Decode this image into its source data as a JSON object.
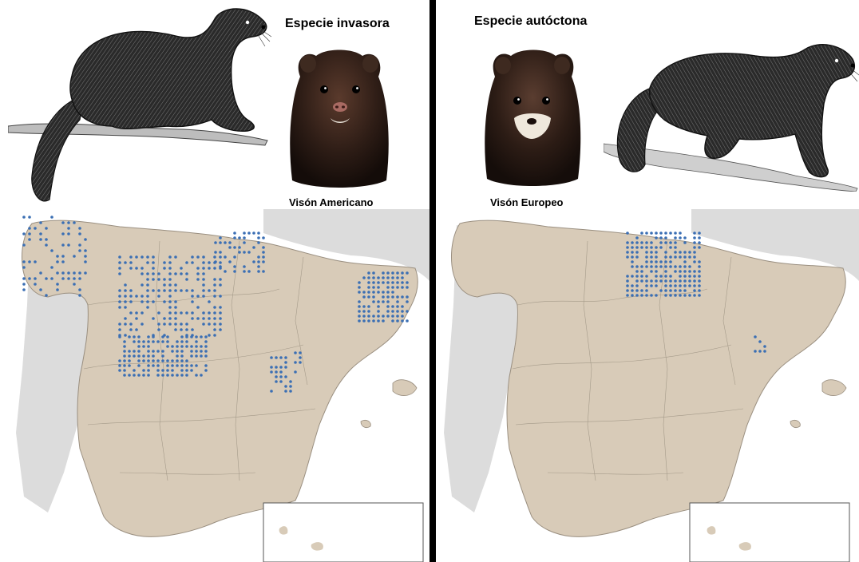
{
  "invasive": {
    "heading": "Especie invasora",
    "species_label": "Visón Americano",
    "illustration": "american-mink-engraving",
    "photo": "american-mink-head-photo",
    "map": "spain-distribution-map-american-mink"
  },
  "native": {
    "heading": "Especie autóctona",
    "species_label": "Visón Europeo",
    "illustration": "european-mink-engraving",
    "photo": "european-mink-head-photo",
    "map": "spain-distribution-map-european-mink"
  },
  "colors": {
    "distribution_dot": "#3b6fb4",
    "land": "#d8cbb8",
    "neighbour_land": "#dcdcdc",
    "sea": "#ffffff",
    "divider": "#000000"
  }
}
